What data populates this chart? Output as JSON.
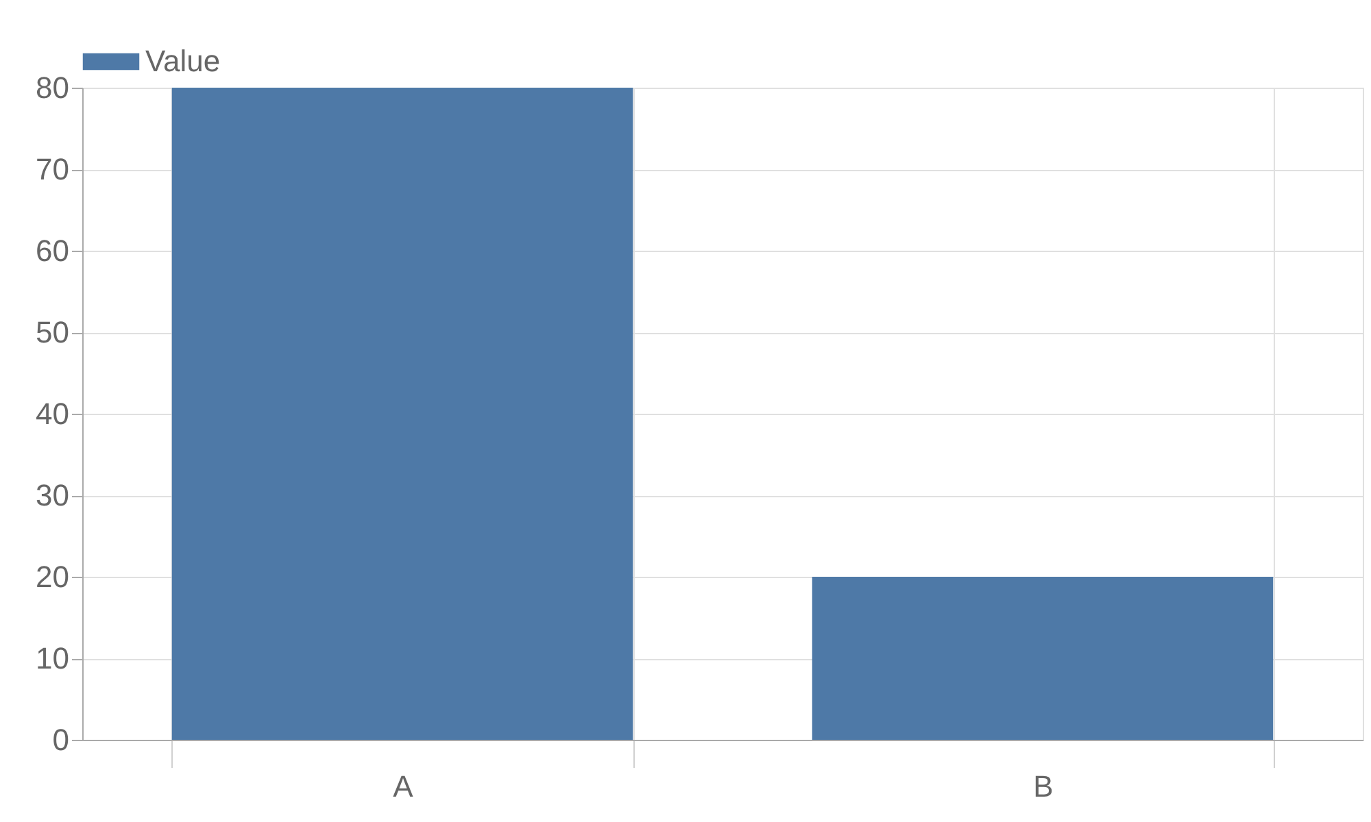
{
  "chart_data": {
    "type": "bar",
    "categories": [
      "A",
      "B"
    ],
    "series": [
      {
        "name": "Value",
        "color": "#4e79a7",
        "values": [
          80,
          20
        ]
      }
    ],
    "ylim": [
      0,
      80
    ],
    "yticks": [
      0,
      10,
      20,
      30,
      40,
      50,
      60,
      70,
      80
    ],
    "grid": true,
    "legend": "top"
  }
}
